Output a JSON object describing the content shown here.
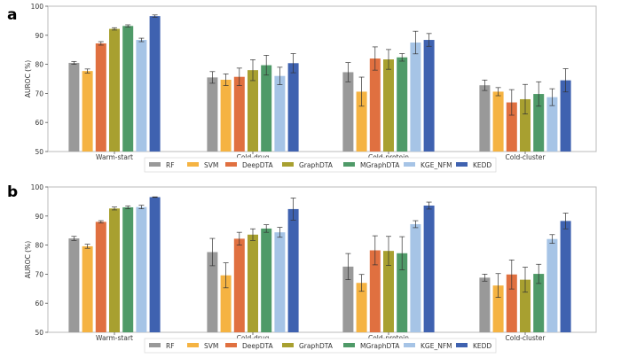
{
  "chart_data": [
    {
      "panel_label": "a",
      "type": "bar",
      "ylabel": "AUROC (%)",
      "ylim": [
        50,
        100
      ],
      "yticks": [
        50,
        60,
        70,
        80,
        90,
        100
      ],
      "categories": [
        "Warm-start",
        "Cold-drug",
        "Cold-protein",
        "Cold-cluster"
      ],
      "legend_position": "bottom",
      "series": [
        {
          "name": "RF",
          "color": "#999999",
          "values": [
            80.5,
            75.5,
            77.3,
            72.8
          ],
          "errors": [
            0.5,
            2.0,
            3.3,
            1.8
          ]
        },
        {
          "name": "SVM",
          "color": "#f5b342",
          "values": [
            77.7,
            74.7,
            70.6,
            70.6
          ],
          "errors": [
            0.7,
            2.0,
            5.0,
            1.4
          ]
        },
        {
          "name": "DeepDTA",
          "color": "#e07040",
          "values": [
            87.2,
            75.7,
            82.0,
            66.9
          ],
          "errors": [
            0.6,
            3.0,
            4.0,
            4.4
          ]
        },
        {
          "name": "GraphDTA",
          "color": "#a8a030",
          "values": [
            92.2,
            78.0,
            81.7,
            68.0
          ],
          "errors": [
            0.4,
            3.6,
            3.4,
            5.1
          ]
        },
        {
          "name": "MGraphDTA",
          "color": "#4f9a68",
          "values": [
            93.2,
            79.7,
            82.4,
            69.8
          ],
          "errors": [
            0.4,
            3.4,
            1.3,
            4.2
          ]
        },
        {
          "name": "KGE_NFM",
          "color": "#a6c4e6",
          "values": [
            88.4,
            76.0,
            87.5,
            68.7
          ],
          "errors": [
            0.6,
            3.0,
            3.9,
            2.9
          ]
        },
        {
          "name": "KEDD",
          "color": "#3f62b0",
          "values": [
            96.6,
            80.4,
            88.4,
            74.5
          ],
          "errors": [
            0.4,
            3.3,
            2.2,
            4.0
          ]
        }
      ]
    },
    {
      "panel_label": "b",
      "type": "bar",
      "ylabel": "AUROC (%)",
      "ylim": [
        50,
        100
      ],
      "yticks": [
        50,
        60,
        70,
        80,
        90,
        100
      ],
      "categories": [
        "Warm-start",
        "Cold-drug",
        "Cold-protein",
        "Cold-cluster"
      ],
      "legend_position": "bottom",
      "series": [
        {
          "name": "RF",
          "color": "#999999",
          "values": [
            82.3,
            77.6,
            72.6,
            68.8
          ],
          "errors": [
            0.7,
            4.7,
            4.5,
            1.2
          ]
        },
        {
          "name": "SVM",
          "color": "#f5b342",
          "values": [
            79.6,
            69.6,
            67.0,
            66.1
          ],
          "errors": [
            0.7,
            4.3,
            2.9,
            4.1
          ]
        },
        {
          "name": "DeepDTA",
          "color": "#e07040",
          "values": [
            88.0,
            82.2,
            78.2,
            69.9
          ],
          "errors": [
            0.4,
            2.2,
            5.0,
            5.0
          ]
        },
        {
          "name": "GraphDTA",
          "color": "#a8a030",
          "values": [
            92.6,
            83.6,
            78.0,
            68.1
          ],
          "errors": [
            0.5,
            2.0,
            5.0,
            4.3
          ]
        },
        {
          "name": "MGraphDTA",
          "color": "#4f9a68",
          "values": [
            93.0,
            85.7,
            77.2,
            70.1
          ],
          "errors": [
            0.5,
            1.3,
            5.7,
            3.3
          ]
        },
        {
          "name": "KGE_NFM",
          "color": "#a6c4e6",
          "values": [
            93.1,
            84.4,
            87.2,
            82.1
          ],
          "errors": [
            0.6,
            1.7,
            1.2,
            1.5
          ]
        },
        {
          "name": "KEDD",
          "color": "#3f62b0",
          "values": [
            96.5,
            92.4,
            93.6,
            88.3
          ],
          "errors": [
            0.1,
            3.8,
            1.2,
            2.7
          ]
        }
      ]
    }
  ]
}
